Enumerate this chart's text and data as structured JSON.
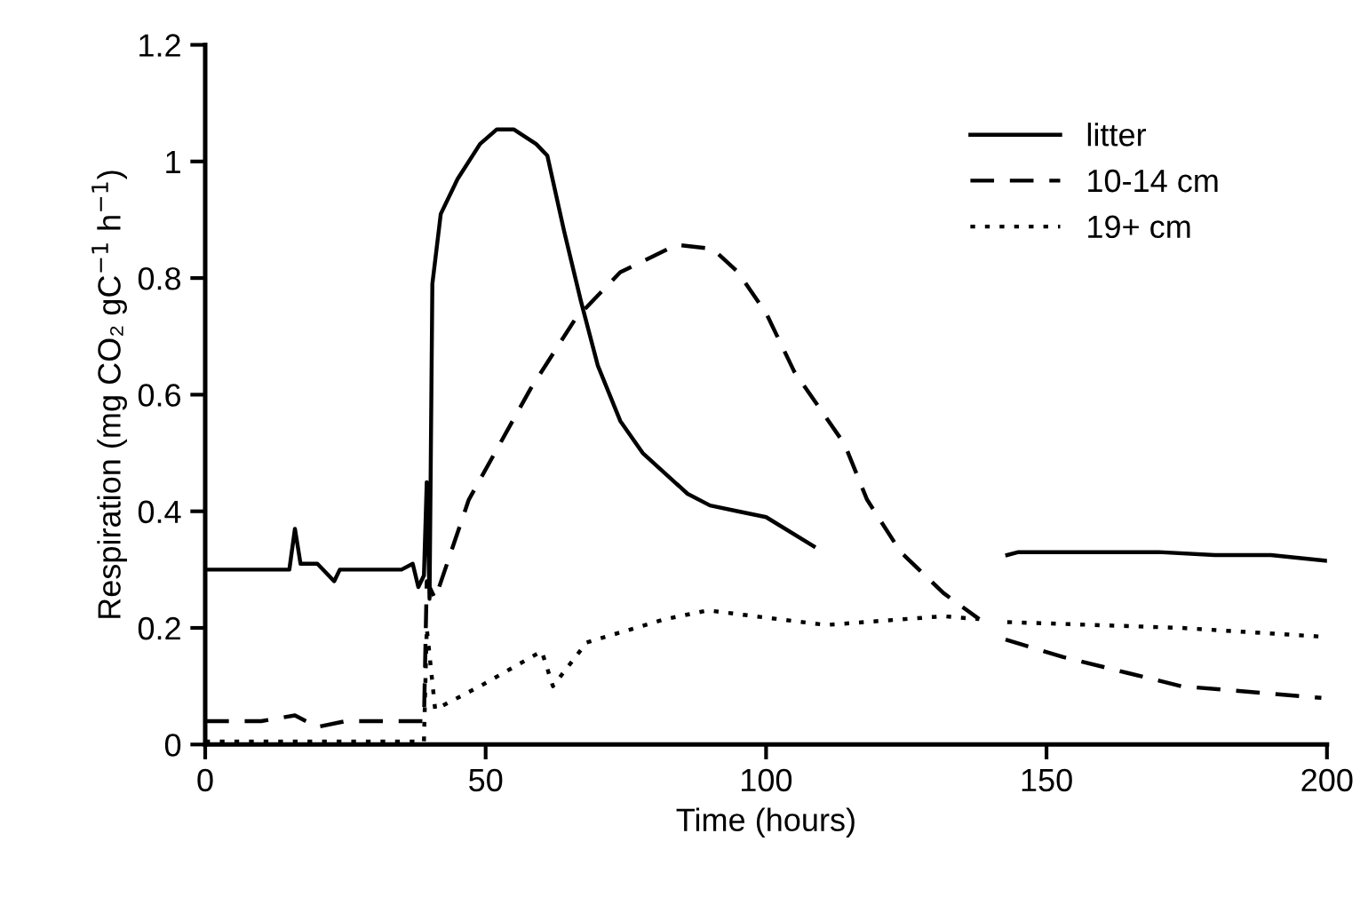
{
  "chart_data": {
    "type": "line",
    "xlabel": "Time (hours)",
    "ylabel": "Respiration (mg CO₂ gC$^{−1}$ h$^{−1}$)",
    "xlim": [
      0,
      200
    ],
    "xticks": [
      0,
      50,
      100,
      150,
      200
    ],
    "ylim": [
      0,
      1.2
    ],
    "yticks": [
      0,
      0.2,
      0.4,
      0.6,
      0.8,
      1,
      1.2
    ],
    "grid": false,
    "legend": "top right",
    "marker": "none",
    "series": [
      {
        "name": "litter",
        "color": "#000000",
        "line_style": "solid",
        "x": [
          0,
          10,
          15,
          16,
          17,
          20,
          23,
          24,
          30,
          35,
          37,
          38,
          39,
          39.5,
          40,
          40.5,
          42,
          45,
          49,
          52,
          55,
          59,
          61,
          64,
          67,
          70,
          74,
          78,
          86,
          90,
          95,
          100,
          108.5,
          125,
          143,
          145,
          150,
          160,
          170,
          180,
          190,
          195,
          200
        ],
        "values": [
          0.3,
          0.3,
          0.3,
          0.37,
          0.31,
          0.31,
          0.28,
          0.3,
          0.3,
          0.3,
          0.31,
          0.27,
          0.29,
          0.45,
          0.25,
          0.79,
          0.91,
          0.97,
          1.03,
          1.055,
          1.055,
          1.03,
          1.01,
          0.88,
          0.76,
          0.65,
          0.555,
          0.5,
          0.43,
          0.41,
          0.4,
          0.39,
          0.34,
          null,
          0.325,
          0.33,
          0.33,
          0.33,
          0.33,
          0.325,
          0.325,
          0.32,
          0.315
        ]
      },
      {
        "name": "10-14 cm",
        "color": "#000000",
        "line_style": "dashed",
        "x": [
          0,
          10,
          16,
          18,
          20,
          25,
          38,
          39,
          39.5,
          41,
          47,
          58,
          66,
          74,
          84,
          90.5,
          95,
          100,
          105,
          114,
          118,
          124,
          131.6,
          138,
          140.5,
          142.7,
          153,
          174,
          199
        ],
        "values": [
          0.04,
          0.04,
          0.05,
          0.04,
          0.03,
          0.04,
          0.04,
          0.04,
          0.28,
          0.25,
          0.42,
          0.61,
          0.73,
          0.81,
          0.857,
          0.85,
          0.81,
          0.74,
          0.64,
          0.515,
          0.42,
          0.33,
          0.26,
          0.215,
          null,
          0.18,
          0.15,
          0.1,
          0.08
        ]
      },
      {
        "name": "19+ cm",
        "color": "#000000",
        "line_style": "dotted",
        "x": [
          0,
          20,
          38,
          39,
          39.5,
          41,
          49,
          60,
          62,
          68,
          82,
          89.6,
          110.7,
          131.6,
          138,
          140.5,
          143,
          174,
          199
        ],
        "values": [
          0.005,
          0.005,
          0.005,
          0.005,
          0.2,
          0.06,
          0.1,
          0.16,
          0.1,
          0.175,
          0.215,
          0.23,
          0.205,
          0.22,
          0.215,
          null,
          0.21,
          0.2,
          0.185
        ]
      }
    ]
  }
}
